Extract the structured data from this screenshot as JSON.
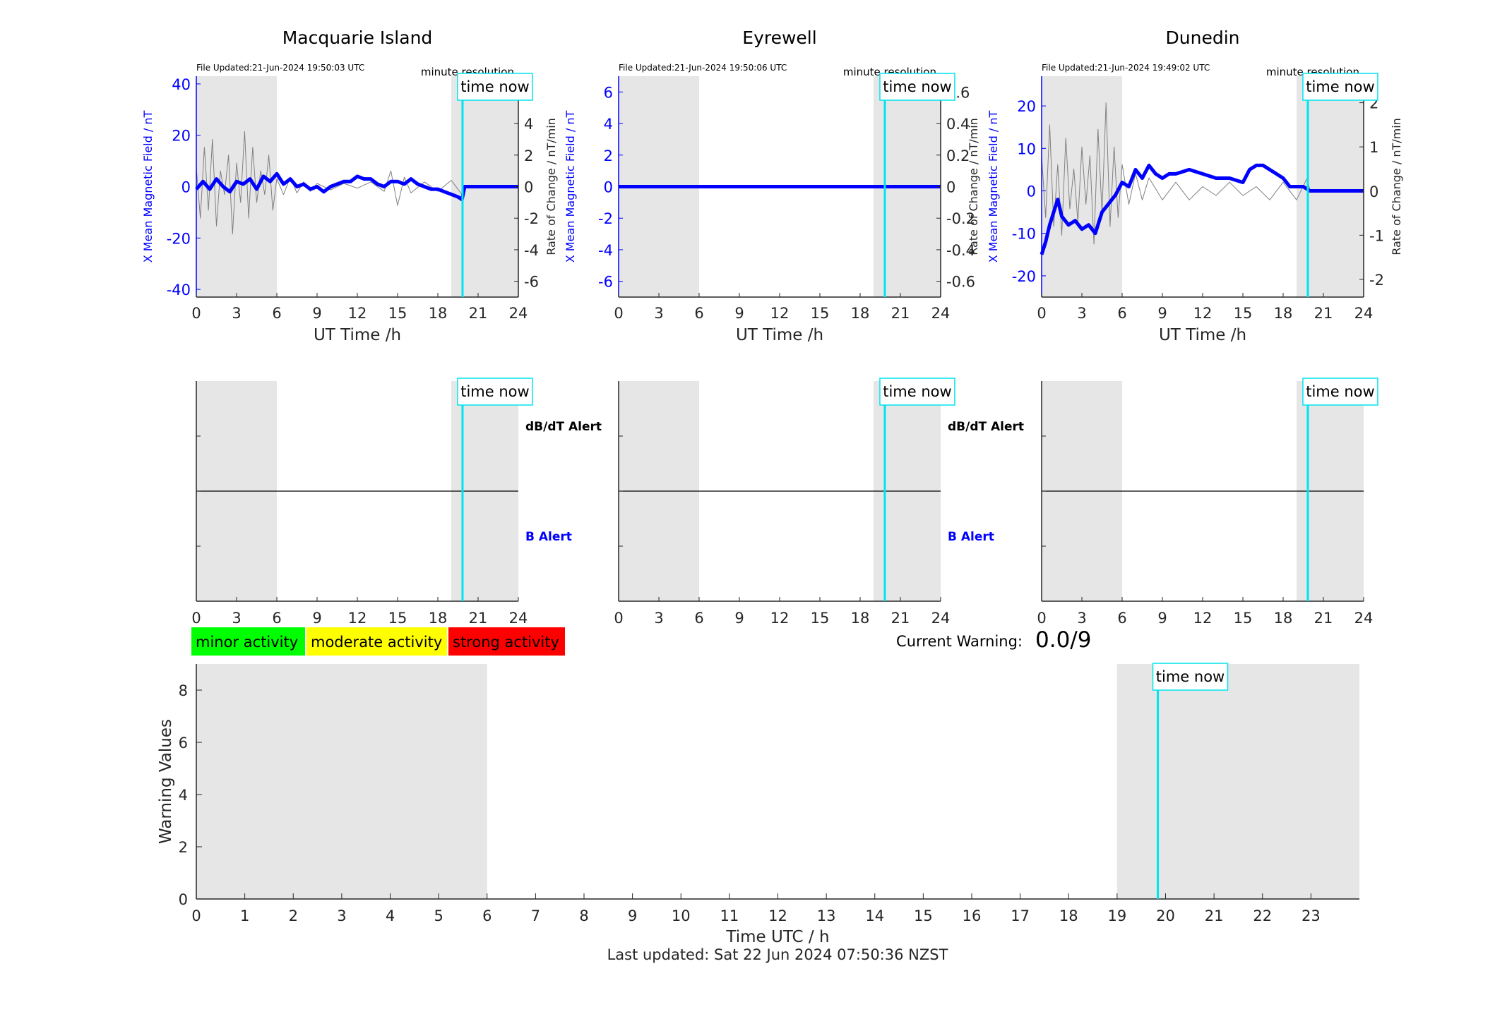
{
  "colors": {
    "field": "#0000ff",
    "rate": "#808080",
    "shade": "#e6e6e6",
    "now": "#00e5ee",
    "minor": "#00ff00",
    "moderate": "#ffff00",
    "strong": "#ff0000"
  },
  "now_hour": 19.84,
  "time_now_label": "time now",
  "labels": {
    "x_axis_top": "UT Time /h",
    "y_left": "X Mean Magnetic Field / nT",
    "y_right": "Rate of Change / nT/min",
    "resolution": "minute resolution",
    "dbdt_alert": "dB/dT Alert",
    "b_alert": "B Alert",
    "current_warning_label": "Current Warning:",
    "current_warning_value": "0.0/9",
    "warning_ylabel": "Warning Values",
    "warning_xlabel": "Time UTC / h",
    "last_updated": "Last updated: Sat 22 Jun 2024 07:50:36 NZST"
  },
  "legend": [
    "minor activity",
    "moderate activity",
    "strong activity"
  ],
  "chart_data": [
    {
      "type": "line",
      "title": "Macquarie Island",
      "file_updated": "File Updated:21-Jun-2024 19:50:03 UTC",
      "xlim": [
        0,
        24
      ],
      "xticks": [
        "0",
        "3",
        "6",
        "9",
        "12",
        "15",
        "18",
        "21",
        "24"
      ],
      "left_axis": {
        "ylim": [
          -43,
          43
        ],
        "ticks": [
          -40,
          -20,
          0,
          20,
          40
        ],
        "tick_labels": [
          "-40",
          "-20",
          "0",
          "20",
          "40"
        ]
      },
      "right_axis": {
        "ylim": [
          -7,
          7
        ],
        "ticks": [
          -6,
          -4,
          -2,
          0,
          2,
          4,
          6
        ],
        "tick_labels": [
          "-6",
          "-4",
          "-2",
          "0",
          "2",
          "4",
          "6"
        ]
      },
      "shaded": [
        [
          0,
          6
        ],
        [
          19,
          24
        ]
      ],
      "series": [
        {
          "axis": "left",
          "x": [
            0,
            0.5,
            1,
            1.5,
            2,
            2.5,
            3,
            3.5,
            4,
            4.5,
            5,
            5.5,
            6,
            6.5,
            7,
            7.5,
            8,
            8.5,
            9,
            9.5,
            10,
            10.5,
            11,
            11.5,
            12,
            12.5,
            13,
            13.5,
            14,
            14.5,
            15,
            15.5,
            16,
            16.5,
            17,
            17.5,
            18,
            18.5,
            19,
            19.5,
            19.8,
            20,
            24
          ],
          "y": [
            -1,
            2,
            -1,
            3,
            0,
            -2,
            2,
            1,
            3,
            -1,
            4,
            2,
            5,
            1,
            3,
            0,
            1,
            -1,
            0,
            -2,
            0,
            1,
            2,
            2,
            4,
            3,
            3,
            1,
            0,
            2,
            2,
            1,
            3,
            1,
            0,
            -1,
            -1,
            -2,
            -3,
            -4,
            -5,
            0,
            0
          ]
        },
        {
          "axis": "right",
          "x": [
            0,
            0.3,
            0.6,
            0.9,
            1.2,
            1.5,
            1.8,
            2.1,
            2.4,
            2.7,
            3.0,
            3.3,
            3.6,
            3.9,
            4.2,
            4.5,
            4.8,
            5.1,
            5.4,
            5.7,
            6.0,
            6.5,
            7,
            7.5,
            8,
            8.5,
            9,
            10,
            11,
            12,
            13,
            14,
            14.5,
            15,
            15.5,
            16,
            17,
            18,
            19,
            19.8,
            20,
            24
          ],
          "y": [
            1.2,
            -2.0,
            2.5,
            -1.5,
            3.0,
            -2.5,
            1.0,
            -0.5,
            2.0,
            -3.0,
            1.5,
            -1.0,
            3.5,
            -2.0,
            2.5,
            -1.0,
            1.0,
            -0.5,
            2.0,
            -1.5,
            0.5,
            -0.5,
            0.6,
            -0.4,
            0.3,
            -0.3,
            0.2,
            -0.2,
            0.2,
            -0.1,
            0.3,
            -0.3,
            1.0,
            -1.2,
            0.6,
            -0.4,
            0.3,
            -0.3,
            0.4,
            -0.5,
            0,
            0
          ]
        }
      ]
    },
    {
      "type": "line",
      "title": "Eyrewell",
      "file_updated": "File Updated:21-Jun-2024 19:50:06 UTC",
      "xlim": [
        0,
        24
      ],
      "xticks": [
        "0",
        "3",
        "6",
        "9",
        "12",
        "15",
        "18",
        "21",
        "24"
      ],
      "left_axis": {
        "ylim": [
          -7,
          7
        ],
        "ticks": [
          -6,
          -4,
          -2,
          0,
          2,
          4,
          6
        ],
        "tick_labels": [
          "-6",
          "-4",
          "-2",
          "0",
          "2",
          "4",
          "6"
        ]
      },
      "right_axis": {
        "ylim": [
          -0.7,
          0.7
        ],
        "ticks": [
          -0.6,
          -0.4,
          -0.2,
          0,
          0.2,
          0.4,
          0.6
        ],
        "tick_labels": [
          "-0.6",
          "-0.4",
          "-0.2",
          "0",
          "0.2",
          "0.4",
          "0.6"
        ]
      },
      "shaded": [
        [
          0,
          6
        ],
        [
          19,
          24
        ]
      ],
      "series": [
        {
          "axis": "right",
          "x": [
            0,
            24
          ],
          "y": [
            0,
            0
          ]
        },
        {
          "axis": "left",
          "x": [
            0,
            24
          ],
          "y": [
            0,
            0
          ]
        }
      ]
    },
    {
      "type": "line",
      "title": "Dunedin",
      "file_updated": "File Updated:21-Jun-2024 19:49:02 UTC",
      "xlim": [
        0,
        24
      ],
      "xticks": [
        "0",
        "3",
        "6",
        "9",
        "12",
        "15",
        "18",
        "21",
        "24"
      ],
      "left_axis": {
        "ylim": [
          -25,
          27
        ],
        "ticks": [
          -20,
          -10,
          0,
          10,
          20
        ],
        "tick_labels": [
          "-20",
          "-10",
          "0",
          "10",
          "20"
        ]
      },
      "right_axis": {
        "ylim": [
          -2.4,
          2.6
        ],
        "ticks": [
          -2,
          -1,
          0,
          1,
          2
        ],
        "tick_labels": [
          "-2",
          "-1",
          "0",
          "1",
          "2"
        ]
      },
      "shaded": [
        [
          0,
          6
        ],
        [
          19,
          24
        ]
      ],
      "series": [
        {
          "axis": "left",
          "x": [
            0,
            0.3,
            0.6,
            0.9,
            1.2,
            1.5,
            2,
            2.5,
            3,
            3.5,
            4,
            4.5,
            5,
            5.5,
            6,
            6.5,
            7,
            7.5,
            8,
            8.5,
            9,
            9.5,
            10,
            11,
            12,
            13,
            14,
            15,
            15.5,
            16,
            16.5,
            17,
            17.5,
            18,
            18.5,
            19,
            19.5,
            20,
            24
          ],
          "y": [
            -15,
            -12,
            -8,
            -5,
            -2,
            -6,
            -8,
            -7,
            -9,
            -8,
            -10,
            -5,
            -3,
            -1,
            2,
            1,
            5,
            3,
            6,
            4,
            3,
            4,
            4,
            5,
            4,
            3,
            3,
            2,
            5,
            6,
            6,
            5,
            4,
            3,
            1,
            1,
            1,
            0,
            0
          ]
        },
        {
          "axis": "right",
          "x": [
            0,
            0.3,
            0.6,
            0.9,
            1.2,
            1.5,
            1.8,
            2.1,
            2.4,
            2.7,
            3.0,
            3.3,
            3.6,
            3.9,
            4.2,
            4.5,
            4.8,
            5.1,
            5.4,
            5.7,
            6.0,
            6.5,
            7,
            7.5,
            8,
            9,
            10,
            11,
            12,
            13,
            14,
            15,
            16,
            17,
            18,
            19,
            19.8,
            20,
            24
          ],
          "y": [
            0.8,
            -0.6,
            1.5,
            -0.8,
            0.6,
            -1.0,
            1.2,
            -0.4,
            0.5,
            -0.7,
            1.0,
            -0.3,
            0.8,
            -1.2,
            1.4,
            -0.5,
            2.0,
            -0.8,
            1.0,
            -0.6,
            0.6,
            -0.3,
            0.4,
            -0.2,
            0.3,
            -0.2,
            0.2,
            -0.2,
            0.1,
            -0.1,
            0.2,
            -0.1,
            0.1,
            -0.2,
            0.2,
            -0.2,
            0.3,
            0,
            0
          ]
        }
      ]
    },
    {
      "type": "line",
      "title": "",
      "xlim": [
        0,
        24
      ],
      "xticks": [
        "0",
        "3",
        "6",
        "9",
        "12",
        "15",
        "18",
        "21",
        "24"
      ],
      "shaded": [
        [
          0,
          6
        ],
        [
          19,
          24
        ]
      ],
      "ylim": [
        -1,
        1
      ],
      "series": [
        {
          "x": [
            0,
            24
          ],
          "y": [
            0,
            0
          ]
        }
      ]
    },
    {
      "type": "line",
      "title": "",
      "xlim": [
        0,
        24
      ],
      "xticks": [
        "0",
        "3",
        "6",
        "9",
        "12",
        "15",
        "18",
        "21",
        "24"
      ],
      "shaded": [
        [
          0,
          6
        ],
        [
          19,
          24
        ]
      ],
      "ylim": [
        -1,
        1
      ],
      "series": [
        {
          "x": [
            0,
            24
          ],
          "y": [
            0,
            0
          ]
        }
      ]
    },
    {
      "type": "line",
      "title": "",
      "xlim": [
        0,
        24
      ],
      "xticks": [
        "0",
        "3",
        "6",
        "9",
        "12",
        "15",
        "18",
        "21",
        "24"
      ],
      "shaded": [
        [
          0,
          6
        ],
        [
          19,
          24
        ]
      ],
      "ylim": [
        -1,
        1
      ],
      "series": [
        {
          "x": [
            0,
            24
          ],
          "y": [
            0,
            0
          ]
        }
      ]
    },
    {
      "type": "line",
      "title": "",
      "xlabel": "Time UTC / h",
      "ylabel": "Warning Values",
      "xlim": [
        0,
        24
      ],
      "ylim": [
        0,
        9
      ],
      "xticks": [
        "0",
        "1",
        "2",
        "3",
        "4",
        "5",
        "6",
        "7",
        "8",
        "9",
        "10",
        "11",
        "12",
        "13",
        "14",
        "15",
        "16",
        "17",
        "18",
        "19",
        "20",
        "21",
        "22",
        "23"
      ],
      "yticks": [
        "0",
        "2",
        "4",
        "6",
        "8"
      ],
      "shaded": [
        [
          0,
          6
        ],
        [
          19,
          24
        ]
      ],
      "series": []
    }
  ]
}
